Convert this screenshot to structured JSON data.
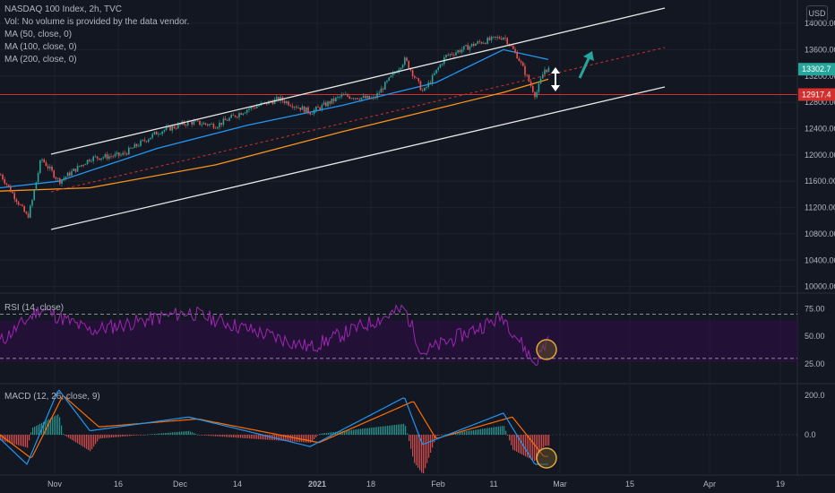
{
  "legend": {
    "title": "NASDAQ 100 Index, 2h, TVC",
    "volume_note": "Vol: No volume is provided by the data vendor.",
    "ma50": "MA (50, close, 0)",
    "ma100": "MA (100, close, 0)",
    "ma200": "MA (200, close, 0)"
  },
  "currency_button": "USD",
  "colors": {
    "background": "#131722",
    "grid": "#1e222d",
    "up": "#26a69a",
    "down": "#ef5350",
    "ma50": "#2196f3",
    "ma200": "#f7931a",
    "channel": "#e6e6e6",
    "hline": "#d32f2f",
    "rsi": "#9c27b0",
    "macd": "#2196f3",
    "signal": "#ff6d00",
    "circle": "#e3a83a",
    "arrow": "#26a69a"
  },
  "x_labels": [
    "Nov",
    "16",
    "Dec",
    "14",
    "2021",
    "18",
    "Feb",
    "11",
    "Mar",
    "15",
    "Apr",
    "19"
  ],
  "chart_data": [
    {
      "type": "line",
      "panel": "price",
      "title": "NASDAQ 100 Index, 2h, TVC",
      "x_ticks": [
        "Nov",
        "16",
        "Dec",
        "14",
        "2021",
        "18",
        "Feb",
        "11",
        "Mar",
        "15",
        "Apr",
        "19"
      ],
      "y_ticks": [
        10000,
        10400,
        10800,
        11200,
        11600,
        12000,
        12400,
        12800,
        13200,
        13600,
        14000
      ],
      "ylim": [
        9900,
        14300
      ],
      "price_labels": [
        "13302.7",
        "12917.4"
      ],
      "series": [
        {
          "name": "Close",
          "points": [
            [
              "Oct 27",
              11700
            ],
            [
              "Nov 2",
              11050
            ],
            [
              "Nov 3",
              11300
            ],
            [
              "Nov 5",
              11950
            ],
            [
              "Nov 9",
              11600
            ],
            [
              "Nov 16",
              11950
            ],
            [
              "Nov 23",
              12000
            ],
            [
              "Dec 1",
              12350
            ],
            [
              "Dec 8",
              12500
            ],
            [
              "Dec 14",
              12450
            ],
            [
              "Dec 21",
              12700
            ],
            [
              "Dec 28",
              12850
            ],
            [
              "Jan 4",
              12650
            ],
            [
              "Jan 11",
              12900
            ],
            [
              "Jan 18",
              12850
            ],
            [
              "Jan 25",
              13450
            ],
            [
              "Jan 29",
              12950
            ],
            [
              "Feb 3",
              13500
            ],
            [
              "Feb 10",
              13700
            ],
            [
              "Feb 16",
              13800
            ],
            [
              "Feb 19",
              13500
            ],
            [
              "Feb 23",
              12900
            ],
            [
              "Feb 25",
              13300
            ]
          ]
        },
        {
          "name": "MA (50, close, 0)",
          "points": [
            [
              "Oct 27",
              11500
            ],
            [
              "Nov 9",
              11600
            ],
            [
              "Dec 1",
              12100
            ],
            [
              "Dec 21",
              12450
            ],
            [
              "Jan 11",
              12750
            ],
            [
              "Feb 1",
              13100
            ],
            [
              "Feb 16",
              13600
            ],
            [
              "Feb 26",
              13450
            ]
          ]
        },
        {
          "name": "MA (200, close, 0)",
          "points": [
            [
              "Oct 27",
              11450
            ],
            [
              "Nov 16",
              11500
            ],
            [
              "Dec 14",
              11850
            ],
            [
              "Jan 11",
              12350
            ],
            [
              "Feb 1",
              12700
            ],
            [
              "Feb 16",
              12950
            ],
            [
              "Feb 26",
              13150
            ]
          ]
        }
      ]
    },
    {
      "type": "line",
      "panel": "rsi",
      "title": "RSI (14, close)",
      "y_ticks": [
        25.0,
        50.0,
        75.0
      ],
      "band": [
        30,
        70
      ],
      "series": [
        {
          "name": "RSI",
          "points": [
            [
              "Oct 27",
              45
            ],
            [
              "Nov 5",
              75
            ],
            [
              "Nov 16",
              55
            ],
            [
              "Dec 8",
              72
            ],
            [
              "Jan 4",
              40
            ],
            [
              "Jan 25",
              75
            ],
            [
              "Jan 29",
              35
            ],
            [
              "Feb 16",
              68
            ],
            [
              "Feb 23",
              25
            ],
            [
              "Feb 26",
              48
            ]
          ]
        }
      ]
    },
    {
      "type": "line",
      "panel": "macd",
      "title": "MACD (12, 26, close, 9)",
      "y_ticks": [
        0.0,
        200.0
      ],
      "series": [
        {
          "name": "MACD",
          "points": [
            [
              "Oct 27",
              -20
            ],
            [
              "Nov 2",
              -150
            ],
            [
              "Nov 9",
              230
            ],
            [
              "Nov 16",
              20
            ],
            [
              "Dec 8",
              90
            ],
            [
              "Jan 4",
              -60
            ],
            [
              "Jan 25",
              190
            ],
            [
              "Jan 29",
              -50
            ],
            [
              "Feb 16",
              110
            ],
            [
              "Feb 23",
              -150
            ]
          ]
        },
        {
          "name": "Signal",
          "points": [
            [
              "Oct 27",
              0
            ],
            [
              "Nov 3",
              -120
            ],
            [
              "Nov 10",
              200
            ],
            [
              "Nov 18",
              40
            ],
            [
              "Dec 10",
              80
            ],
            [
              "Jan 6",
              -40
            ],
            [
              "Jan 27",
              170
            ],
            [
              "Feb 1",
              -20
            ],
            [
              "Feb 18",
              90
            ],
            [
              "Feb 25",
              -110
            ]
          ]
        }
      ]
    }
  ],
  "panels": {
    "rsi_title": "RSI (14, close)",
    "macd_title": "MACD (12, 26, close, 9)"
  }
}
